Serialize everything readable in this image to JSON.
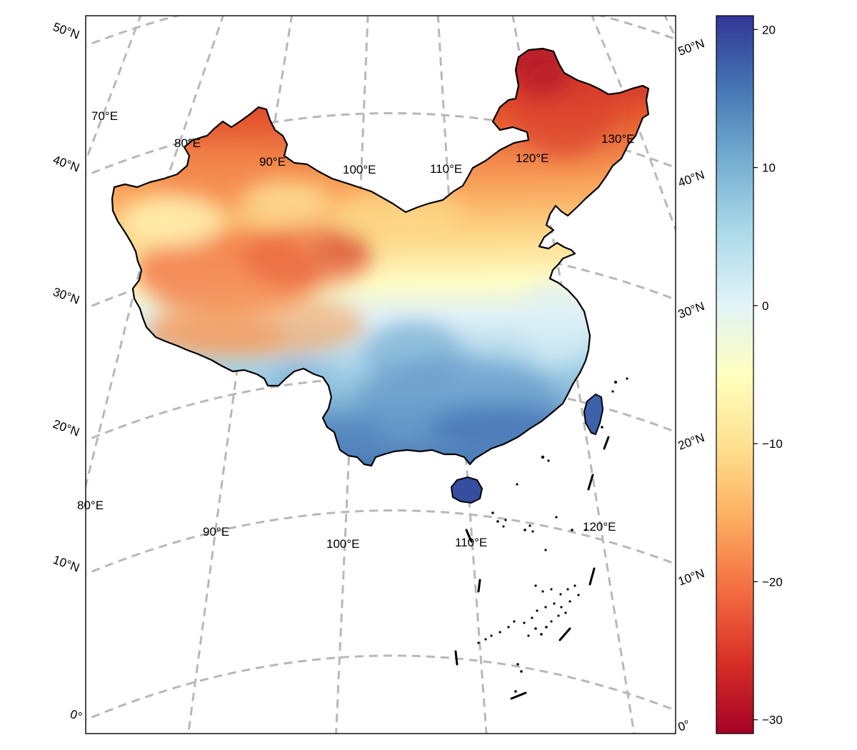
{
  "map": {
    "lat_labels_left": [
      "50°N",
      "40°N",
      "30°N",
      "20°N",
      "10°N",
      "0°"
    ],
    "lat_labels_right": [
      "50°N",
      "40°N",
      "30°N",
      "20°N",
      "10°N",
      "0°"
    ],
    "lon_labels_upper": [
      "70°E",
      "80°E",
      "90°E",
      "100°E",
      "110°E",
      "120°E",
      "130°E"
    ],
    "lon_labels_lower": [
      "80°E",
      "90°E",
      "100°E",
      "110°E",
      "120°E"
    ]
  },
  "colorbar": {
    "colormap": "RdYlBu",
    "min": -31,
    "max": 21,
    "ticks": [
      {
        "value": 20,
        "label": "20"
      },
      {
        "value": 10,
        "label": "10"
      },
      {
        "value": 0,
        "label": "0"
      },
      {
        "value": -10,
        "label": "−10"
      },
      {
        "value": -20,
        "label": "−20"
      },
      {
        "value": -30,
        "label": "−30"
      }
    ],
    "stops": [
      "#a50026",
      "#d73027",
      "#f46d43",
      "#fdae61",
      "#fee090",
      "#ffffbf",
      "#e0f3f8",
      "#abd9e9",
      "#74add1",
      "#4575b4",
      "#313695"
    ]
  },
  "colors": {
    "grid": "#b8b8b8",
    "border": "#000000"
  }
}
